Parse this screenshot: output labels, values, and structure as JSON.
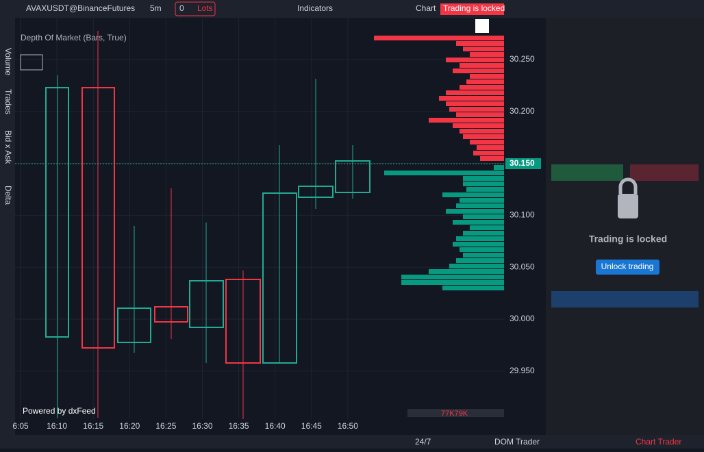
{
  "toolbar": {
    "symbol": "AVAXUSDT@BinanceFutures",
    "interval": "5m",
    "lots_value": "0",
    "lots_label": "Lots",
    "indicators": "Indicators",
    "chart": "Chart",
    "lock_badge": "Trading is locked"
  },
  "left_tabs": [
    "Volume",
    "Trades",
    "Bid x Ask",
    "Delta"
  ],
  "chart": {
    "indicator_label": "Depth Of Market (Bars, True)",
    "price_ticks": [
      "30.250",
      "30.200",
      "30.150",
      "30.100",
      "30.050",
      "30.000",
      "29.950"
    ],
    "current_price": "30.150",
    "time_labels": [
      "6:05",
      "16:10",
      "16:15",
      "16:20",
      "16:25",
      "16:30",
      "16:35",
      "16:40",
      "16:45",
      "16:50"
    ],
    "powered_by": "Powered by dxFeed",
    "dom_total": "77K79K",
    "dom": {
      "asks": [
        190,
        70,
        60,
        50,
        85,
        65,
        75,
        50,
        55,
        65,
        85,
        95,
        85,
        80,
        70,
        110,
        75,
        65,
        60,
        50,
        40,
        45,
        35
      ],
      "bids": [
        15,
        175,
        60,
        60,
        55,
        90,
        65,
        70,
        85,
        60,
        75,
        50,
        60,
        70,
        75,
        65,
        60,
        70,
        80,
        110,
        150,
        150,
        90
      ]
    }
  },
  "lock_panel": {
    "title": "Trading is locked",
    "button": "Unlock trading"
  },
  "bottom_bar": {
    "session": "24/7",
    "dom_trader": "DOM Trader",
    "chart_trader": "Chart Trader"
  }
}
